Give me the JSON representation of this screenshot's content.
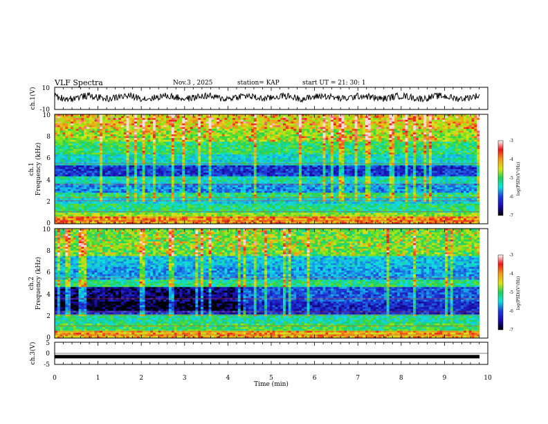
{
  "header": {
    "title": "VLF Spectra",
    "date": "Nov.3 , 2025",
    "station": "station= KAP",
    "start": "start UT = 21: 30: 1"
  },
  "chart_data": [
    {
      "type": "line",
      "id": "ch1",
      "ylabel": "ch.1(V)",
      "ylim": [
        -10,
        10
      ],
      "yticks": [
        "10",
        "-10"
      ],
      "xlim": [
        0,
        10
      ],
      "description_series": "noisy waveform oscillating around +1 V with amplitude about 4 V"
    },
    {
      "type": "heatmap",
      "id": "spec1",
      "ylabel": "ch.1",
      "ylabel2": "Frequency (kHz)",
      "ylim": [
        0,
        10
      ],
      "yticks": [
        "0",
        "2",
        "4",
        "6",
        "8",
        "10"
      ],
      "xlim": [
        0,
        9.85
      ],
      "colorbar": {
        "ticks": [
          "-3",
          "-4",
          "-5",
          "-6",
          "-7"
        ],
        "label": "log(PSD)(V²/Hz)",
        "range": [
          -7,
          -3
        ]
      },
      "bands": [
        {
          "from": 0,
          "to": 0.6,
          "value": -3.6
        },
        {
          "from": 0.6,
          "to": 1.0,
          "value": -4.3
        },
        {
          "from": 1.0,
          "to": 1.8,
          "value": -4.9
        },
        {
          "from": 1.8,
          "to": 2.3,
          "value": -5.3
        },
        {
          "from": 2.3,
          "to": 2.9,
          "value": -4.8
        },
        {
          "from": 2.9,
          "to": 3.7,
          "value": -5.7
        },
        {
          "from": 3.7,
          "to": 4.4,
          "value": -5.1
        },
        {
          "from": 4.4,
          "to": 5.4,
          "value": -6.2
        },
        {
          "from": 5.4,
          "to": 6.4,
          "value": -5.2
        },
        {
          "from": 6.4,
          "to": 7.5,
          "value": -4.8
        },
        {
          "from": 7.5,
          "to": 8.6,
          "value": -4.4
        },
        {
          "from": 8.6,
          "to": 10,
          "value": -4.0
        }
      ]
    },
    {
      "type": "heatmap",
      "id": "spec2",
      "ylabel": "ch.2",
      "ylabel2": "Frequency (kHz)",
      "ylim": [
        0,
        10
      ],
      "yticks": [
        "0",
        "2",
        "4",
        "6",
        "8",
        "10"
      ],
      "xlim": [
        0,
        9.85
      ],
      "colorbar": {
        "ticks": [
          "-3",
          "-4",
          "-5",
          "-6",
          "-7"
        ],
        "label": "log(PSD)(V²/Hz)",
        "range": [
          -7,
          -3
        ]
      },
      "bands": [
        {
          "from": 0,
          "to": 0.6,
          "value": -3.7
        },
        {
          "from": 0.6,
          "to": 1.4,
          "value": -4.7
        },
        {
          "from": 1.4,
          "to": 2.2,
          "value": -5.0
        },
        {
          "from": 2.2,
          "to": 3.4,
          "value": -6.3
        },
        {
          "from": 3.4,
          "to": 4.6,
          "value": -6.0
        },
        {
          "from": 4.6,
          "to": 5.3,
          "value": -4.9
        },
        {
          "from": 5.3,
          "to": 6.5,
          "value": -5.6
        },
        {
          "from": 6.5,
          "to": 7.5,
          "value": -5.4
        },
        {
          "from": 7.5,
          "to": 10,
          "value": -4.6
        }
      ]
    },
    {
      "type": "line",
      "id": "ch3",
      "ylabel": "ch.3(V)",
      "ylim": [
        -5,
        5
      ],
      "yticks": [
        "5",
        "0",
        "-5"
      ],
      "xlim": [
        0,
        10
      ],
      "level": -1.5
    }
  ],
  "xaxis": {
    "label": "Time (min)",
    "ticks": [
      "0",
      "1",
      "2",
      "3",
      "4",
      "5",
      "6",
      "7",
      "8",
      "9",
      "10"
    ]
  },
  "palette": {
    "c1": "#1a0aa8",
    "c2": "#1f3bd8",
    "c3": "#17a8e8",
    "c4": "#11e0e0",
    "c5": "#1fd05a",
    "c6": "#7ee21a",
    "c7": "#d8e41a",
    "c8": "#f29a18",
    "c9": "#e81818"
  }
}
